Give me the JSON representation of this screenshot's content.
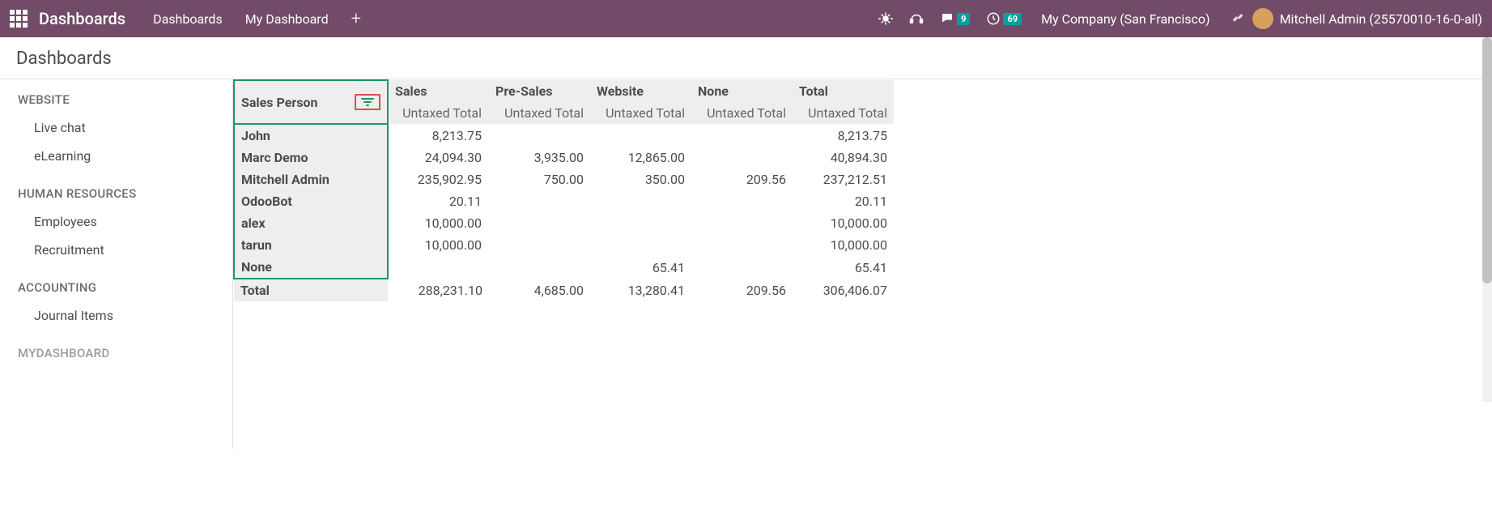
{
  "navbar": {
    "brand": "Dashboards",
    "items": [
      "Dashboards",
      "My Dashboard"
    ],
    "company": "My Company (San Francisco)",
    "user": "Mitchell Admin (25570010-16-0-all)",
    "msg_badge": "9",
    "activity_badge": "69"
  },
  "page": {
    "title": "Dashboards"
  },
  "sidebar": {
    "sections": [
      {
        "title": "WEBSITE",
        "items": [
          "Live chat",
          "eLearning"
        ]
      },
      {
        "title": "HUMAN RESOURCES",
        "items": [
          "Employees",
          "Recruitment"
        ]
      },
      {
        "title": "ACCOUNTING",
        "items": [
          "Journal Items"
        ]
      },
      {
        "title": "MYDASHBOARD",
        "items": []
      }
    ]
  },
  "pivot": {
    "row_header": "Sales Person",
    "col_headers": [
      "Sales",
      "Pre-Sales",
      "Website",
      "None",
      "Total"
    ],
    "measure": "Untaxed Total",
    "rows": [
      {
        "label": "John",
        "cells": [
          "8,213.75",
          "",
          "",
          "",
          "8,213.75"
        ]
      },
      {
        "label": "Marc Demo",
        "cells": [
          "24,094.30",
          "3,935.00",
          "12,865.00",
          "",
          "40,894.30"
        ]
      },
      {
        "label": "Mitchell Admin",
        "cells": [
          "235,902.95",
          "750.00",
          "350.00",
          "209.56",
          "237,212.51"
        ]
      },
      {
        "label": "OdooBot",
        "cells": [
          "20.11",
          "",
          "",
          "",
          "20.11"
        ]
      },
      {
        "label": "alex",
        "cells": [
          "10,000.00",
          "",
          "",
          "",
          "10,000.00"
        ]
      },
      {
        "label": "tarun",
        "cells": [
          "10,000.00",
          "",
          "",
          "",
          "10,000.00"
        ]
      },
      {
        "label": "None",
        "cells": [
          "",
          "",
          "65.41",
          "",
          "65.41"
        ]
      }
    ],
    "total_label": "Total",
    "total_cells": [
      "288,231.10",
      "4,685.00",
      "13,280.41",
      "209.56",
      "306,406.07"
    ]
  },
  "colors": {
    "navbar_bg": "#714b67",
    "badge_bg": "#00a09d",
    "highlight_border": "#1a9b5e",
    "filter_box_border": "#d9534f",
    "grey_bg": "#eeeeee"
  }
}
